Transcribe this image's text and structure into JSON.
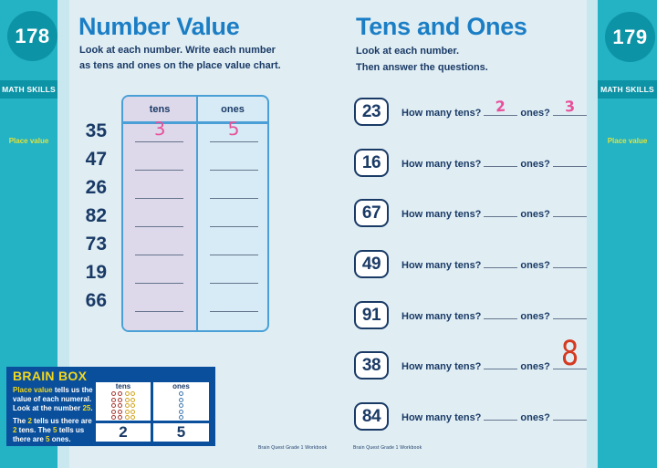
{
  "colors": {
    "teal": "#24b2c5",
    "teal-dark": "#0d93a6",
    "strip": "#c9e7ef",
    "page-bg": "#e0eef4",
    "title-blue": "#1b7ec5",
    "navy": "#1a3a66",
    "chart-border": "#4aa0d6",
    "tens-fill": "#ddd8ea",
    "ones-fill": "#d6ebf6",
    "blank-line": "#64748c",
    "pink": "#e8519a",
    "red": "#d53a21",
    "box-bg": "#0a4f9b",
    "box-yellow": "#f2d71d",
    "topic-yellow": "#dfe23c",
    "dot-red": "#a8352e",
    "dot-yellow": "#d2a41e",
    "dot-blue": "#3c78ae"
  },
  "left_sidebar": {
    "page_number": "178",
    "section_label": "MATH SKILLS",
    "topic_label": "Place value"
  },
  "right_sidebar": {
    "page_number": "179",
    "section_label": "MATH SKILLS",
    "topic_label": "Place value"
  },
  "left_page": {
    "title": "Number Value",
    "instructions_line1": "Look at each number. Write each number",
    "instructions_line2_pre": "as tens and ones on the ",
    "instructions_line2_bold": "place value",
    "instructions_line2_post": " chart.",
    "chart": {
      "tens_header": "tens",
      "ones_header": "ones",
      "rows": [
        {
          "number": "35",
          "tens": "3",
          "ones": "5"
        },
        {
          "number": "47",
          "tens": "",
          "ones": ""
        },
        {
          "number": "26",
          "tens": "",
          "ones": ""
        },
        {
          "number": "82",
          "tens": "",
          "ones": ""
        },
        {
          "number": "73",
          "tens": "",
          "ones": ""
        },
        {
          "number": "19",
          "tens": "",
          "ones": ""
        },
        {
          "number": "66",
          "tens": "",
          "ones": ""
        }
      ]
    },
    "footer": "Brain Quest Grade 1 Workbook"
  },
  "brain_box": {
    "title": "BRAIN BOX",
    "p1": {
      "s1": "Place value",
      "s2": " tells us the value of each numeral. Look at the number ",
      "s3": "25",
      "s4": "."
    },
    "p2": {
      "s1": "The ",
      "s2": "2",
      "s3": " tells us there are ",
      "s4": "2",
      "s5": " tens. The ",
      "s6": "5",
      "s7": " tells us there are ",
      "s8": "5",
      "s9": " ones."
    },
    "chart": {
      "tens_header": "tens",
      "ones_header": "ones",
      "tens_value": "2",
      "ones_value": "5",
      "tens_dot_groups": [
        {
          "color": "red",
          "count": 10
        },
        {
          "color": "yellow",
          "count": 10
        }
      ],
      "ones_dot_groups": [
        {
          "color": "blue",
          "count": 5
        }
      ]
    }
  },
  "right_page": {
    "title": "Tens and Ones",
    "instructions_line1": "Look at each number.",
    "instructions_line2": "Then answer the questions.",
    "tens_question": "How many tens?",
    "ones_question": "ones?",
    "rows": [
      {
        "number": "23",
        "tens_answer": "2",
        "ones_answer": "3"
      },
      {
        "number": "16",
        "tens_answer": "",
        "ones_answer": ""
      },
      {
        "number": "67",
        "tens_answer": "",
        "ones_answer": ""
      },
      {
        "number": "49",
        "tens_answer": "",
        "ones_answer": ""
      },
      {
        "number": "91",
        "tens_answer": "",
        "ones_answer": ""
      },
      {
        "number": "38",
        "tens_answer": "",
        "ones_answer": "8"
      },
      {
        "number": "84",
        "tens_answer": "",
        "ones_answer": ""
      }
    ],
    "footer": "Brain Quest Grade 1 Workbook"
  }
}
